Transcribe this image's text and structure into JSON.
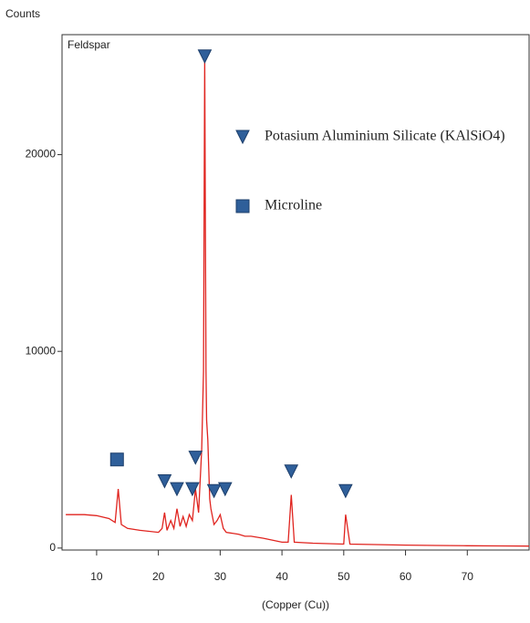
{
  "chart_data": {
    "type": "line",
    "y_label": "Counts",
    "x_label": "(Copper (Cu))",
    "xlim": [
      4.4,
      80
    ],
    "ylim": [
      -100,
      26100
    ],
    "xticks": [
      10,
      20,
      30,
      40,
      50,
      60,
      70
    ],
    "yticks": [
      0,
      10000,
      20000
    ],
    "series": [
      {
        "name": "Feldspar",
        "color": "#e0241f",
        "x": [
          5,
          8,
          10,
          12,
          13,
          13.5,
          14,
          15,
          17,
          20,
          20.6,
          21,
          21.4,
          22,
          22.5,
          23,
          23.5,
          24,
          24.5,
          25,
          25.5,
          26,
          26.5,
          27,
          27.3,
          27.5,
          27.7,
          27.8,
          28,
          28.3,
          28.5,
          29,
          29.5,
          30,
          30.5,
          31,
          33,
          34,
          35,
          37,
          40,
          41,
          41.5,
          42,
          45,
          50,
          50.3,
          51,
          55,
          60,
          65,
          70,
          75,
          80
        ],
        "values": [
          1700,
          1700,
          1650,
          1500,
          1300,
          3000,
          1200,
          1000,
          900,
          800,
          1000,
          1800,
          900,
          1400,
          1000,
          2000,
          1100,
          1600,
          1100,
          1700,
          1400,
          3000,
          1800,
          5000,
          9000,
          25000,
          9000,
          6500,
          5500,
          2500,
          2000,
          1200,
          1400,
          1700,
          1000,
          800,
          700,
          600,
          600,
          500,
          300,
          300,
          2700,
          300,
          250,
          200,
          1700,
          200,
          180,
          150,
          130,
          120,
          110,
          100
        ]
      }
    ],
    "markers": [
      {
        "name": "Potasium Aluminium Silicate (KAlSiO4)",
        "shape": "triangle",
        "color": "#2f5f9a",
        "x": [
          27.5,
          21,
          23,
          25.5,
          26,
          29,
          30.8,
          41.5,
          50.3
        ],
        "values": [
          25000,
          3400,
          3000,
          3000,
          4600,
          2900,
          3000,
          3900,
          2900
        ]
      },
      {
        "name": "Microline",
        "shape": "square",
        "color": "#2f5f9a",
        "x": [
          13.3
        ],
        "values": [
          4500
        ]
      }
    ]
  }
}
